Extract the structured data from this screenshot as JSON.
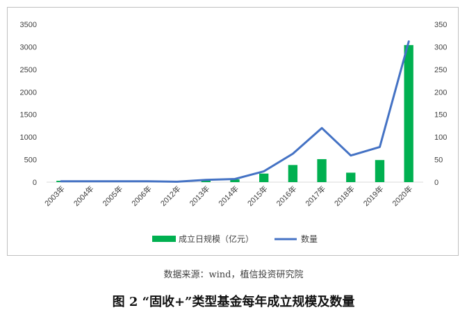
{
  "chart_data": {
    "type": "bar+line",
    "categories": [
      "2003年",
      "2004年",
      "2005年",
      "2006年",
      "2012年",
      "2013年",
      "2014年",
      "2015年",
      "2016年",
      "2017年",
      "2018年",
      "2019年",
      "2020年"
    ],
    "series": [
      {
        "name": "成立日规模（亿元）",
        "type": "bar",
        "axis": "left",
        "color": "#00b050",
        "values": [
          30,
          20,
          10,
          10,
          5,
          40,
          60,
          190,
          380,
          510,
          210,
          490,
          3040
        ]
      },
      {
        "name": "数量",
        "type": "line",
        "axis": "right",
        "color": "#4472c4",
        "values": [
          2,
          2,
          2,
          2,
          1,
          5,
          7,
          24,
          63,
          120,
          59,
          78,
          312
        ]
      }
    ],
    "left_axis": {
      "min": 0,
      "max": 3500,
      "ticks": [
        0,
        500,
        1000,
        1500,
        2000,
        2500,
        3000,
        3500
      ]
    },
    "right_axis": {
      "min": 0,
      "max": 350,
      "ticks": [
        0,
        50,
        100,
        150,
        200,
        250,
        300,
        350
      ]
    },
    "legend_position": "bottom",
    "grid": false
  },
  "source_note": "数据来源：wind，植信投资研究院",
  "figure_caption": "图 2  “固收+”类型基金每年成立规模及数量"
}
